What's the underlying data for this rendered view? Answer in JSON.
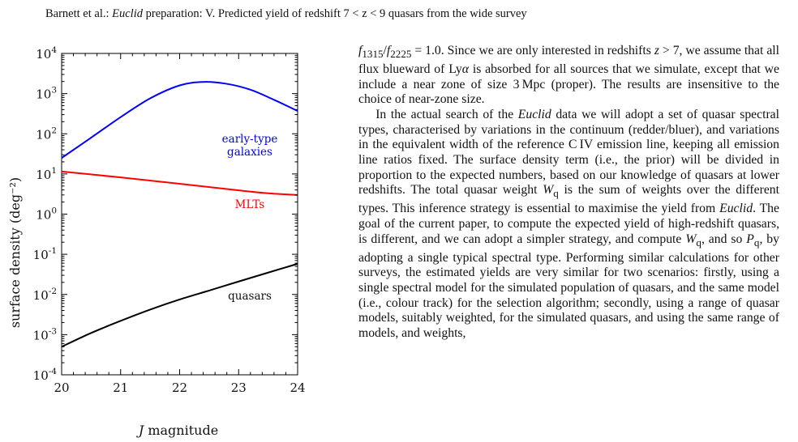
{
  "header": {
    "authors": "Barnett et al.:",
    "journal": "Euclid",
    "title_rest": "preparation: V. Predicted yield of redshift 7 < z < 9 quasars from the wide survey"
  },
  "figure": {
    "chart_data": {
      "type": "line",
      "xlabel_prefix": "J",
      "xlabel": " magnitude",
      "ylabel": "surface density (deg⁻²)",
      "xlim": [
        20,
        24
      ],
      "ylim": [
        0.0001,
        10000
      ],
      "yscale": "log",
      "x_ticks": [
        "20",
        "21",
        "22",
        "23",
        "24"
      ],
      "y_tick_exponents": [
        "4",
        "3",
        "2",
        "1",
        "0",
        "-1",
        "-2",
        "-3",
        "-4"
      ],
      "y_tick_base": "10",
      "grid": false,
      "series": [
        {
          "name": "early-type galaxies",
          "color": "#0000ff",
          "x": [
            20,
            20.5,
            21,
            21.5,
            22,
            22.4,
            22.8,
            23.2,
            23.6,
            24
          ],
          "y": [
            25,
            80,
            260,
            760,
            1600,
            1950,
            1750,
            1250,
            700,
            370
          ]
        },
        {
          "name": "MLTs",
          "color": "#ff0000",
          "x": [
            20,
            21,
            22,
            23,
            23.5,
            24
          ],
          "y": [
            11.5,
            8.2,
            5.7,
            3.9,
            3.3,
            3.0
          ]
        },
        {
          "name": "quasars",
          "color": "#000000",
          "x": [
            20,
            20.5,
            21,
            21.5,
            22,
            22.5,
            23,
            23.5,
            24
          ],
          "y": [
            0.0005,
            0.0011,
            0.0022,
            0.0042,
            0.0075,
            0.0125,
            0.021,
            0.035,
            0.058
          ]
        }
      ],
      "annotations": [
        "early-type",
        "galaxies",
        "MLTs",
        "quasars"
      ]
    }
  },
  "body": {
    "p1": {
      "f1": "f",
      "f1_sub": "1315",
      "slash": "/",
      "f2": "f",
      "f2_sub": "2225",
      "t1": " = 1.0. Since we are only interested in redshifts ",
      "z": "z",
      "t2": " > 7, we assume that all flux blueward of Ly",
      "alpha": "α",
      "t3": " is absorbed for all sources that we simulate, except that we include a near zone of size 3 Mpc (proper). The results are insensitive to the choice of near-zone size."
    },
    "p2": {
      "t1": "In the actual search of the ",
      "euclid1": "Euclid",
      "t2": " data we will adopt a set of quasar spectral types, characterised by variations in the continuum (redder/bluer), and variations in the equivalent width of the reference C IV emission line, keeping all emission line ratios fixed. The surface density term (i.e., the prior) will be divided in proportion to the expected numbers, based on our knowledge of quasars at lower redshifts. The total quasar weight ",
      "wq1": "W",
      "wq1_sub": "q",
      "t3": " is the sum of weights over the different types. This inference strategy is essential to maximise the yield from ",
      "euclid2": "Euclid",
      "t4": ". The goal of the current paper, to compute the expected yield of high-redshift quasars, is different, and we can adopt a simpler strategy, and compute ",
      "wq2": "W",
      "wq2_sub": "q",
      "t5": ", and so ",
      "pq": "P",
      "pq_sub": "q",
      "t6": ", by adopting a single typical spectral type. Performing similar calculations for other surveys, the estimated yields are very similar for two scenarios: firstly, using a single spectral model for the simulated population of quasars, and the same model (i.e., colour track) for the selection algorithm; secondly, using a range of quasar models, suitably weighted, for the simulated quasars, and using the same range of models, and weights,"
    }
  }
}
